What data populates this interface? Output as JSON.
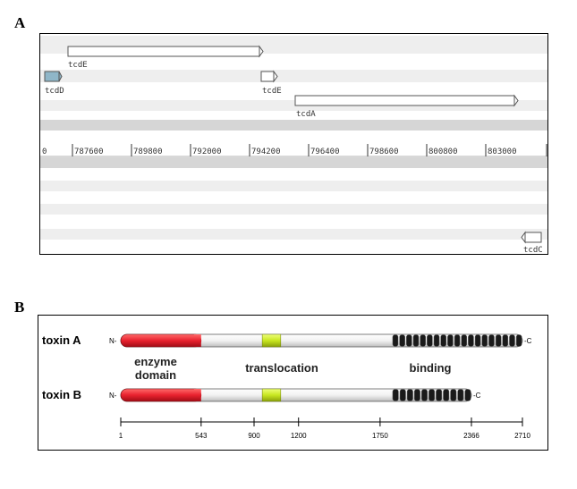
{
  "panel_a": {
    "letter": "A",
    "genes": [
      {
        "label": "tcdE",
        "start": 787100,
        "end": 794200
      },
      {
        "label": "tcdD",
        "start": 786200,
        "end": 786850
      },
      {
        "label": "tcdE",
        "start": 794550,
        "end": 795100
      },
      {
        "label": "tcdA",
        "start": 795700,
        "end": 804100
      },
      {
        "label": "tcdC",
        "start": 804350,
        "end": 805000
      }
    ],
    "ruler": {
      "start_label": "0",
      "ticks": [
        "787600",
        "789800",
        "792000",
        "794200",
        "796400",
        "798600",
        "800800",
        "803000"
      ]
    },
    "colors": {
      "track_light": "#eeeeee",
      "track_dark": "#d6d6d6",
      "gene_fill": "#ffffff",
      "tcdD_fill": "#8fb6c8"
    }
  },
  "panel_b": {
    "letter": "B",
    "toxins": [
      {
        "name": "toxin A",
        "length": 2710,
        "n_label": "N-",
        "c_label": "-C"
      },
      {
        "name": "toxin B",
        "length": 2366,
        "n_label": "N-",
        "c_label": "-C"
      }
    ],
    "domain_labels": {
      "enzyme_line1": "enzyme",
      "enzyme_line2": "domain",
      "translocation": "translocation",
      "binding": "binding"
    },
    "domains": {
      "enzyme": [
        1,
        543
      ],
      "hydrophobic": [
        955,
        1080
      ],
      "binding_start": 1830
    },
    "axis_ticks": [
      "1",
      "543",
      "900",
      "1200",
      "1750",
      "2366",
      "2710"
    ],
    "axis_values": [
      1,
      543,
      900,
      1200,
      1750,
      2366,
      2710
    ],
    "colors": {
      "enzyme": "#e8212e",
      "hydrophobic": "#c8e620",
      "body": "#f2f2f2",
      "repeat": "#1a1a1a"
    }
  }
}
